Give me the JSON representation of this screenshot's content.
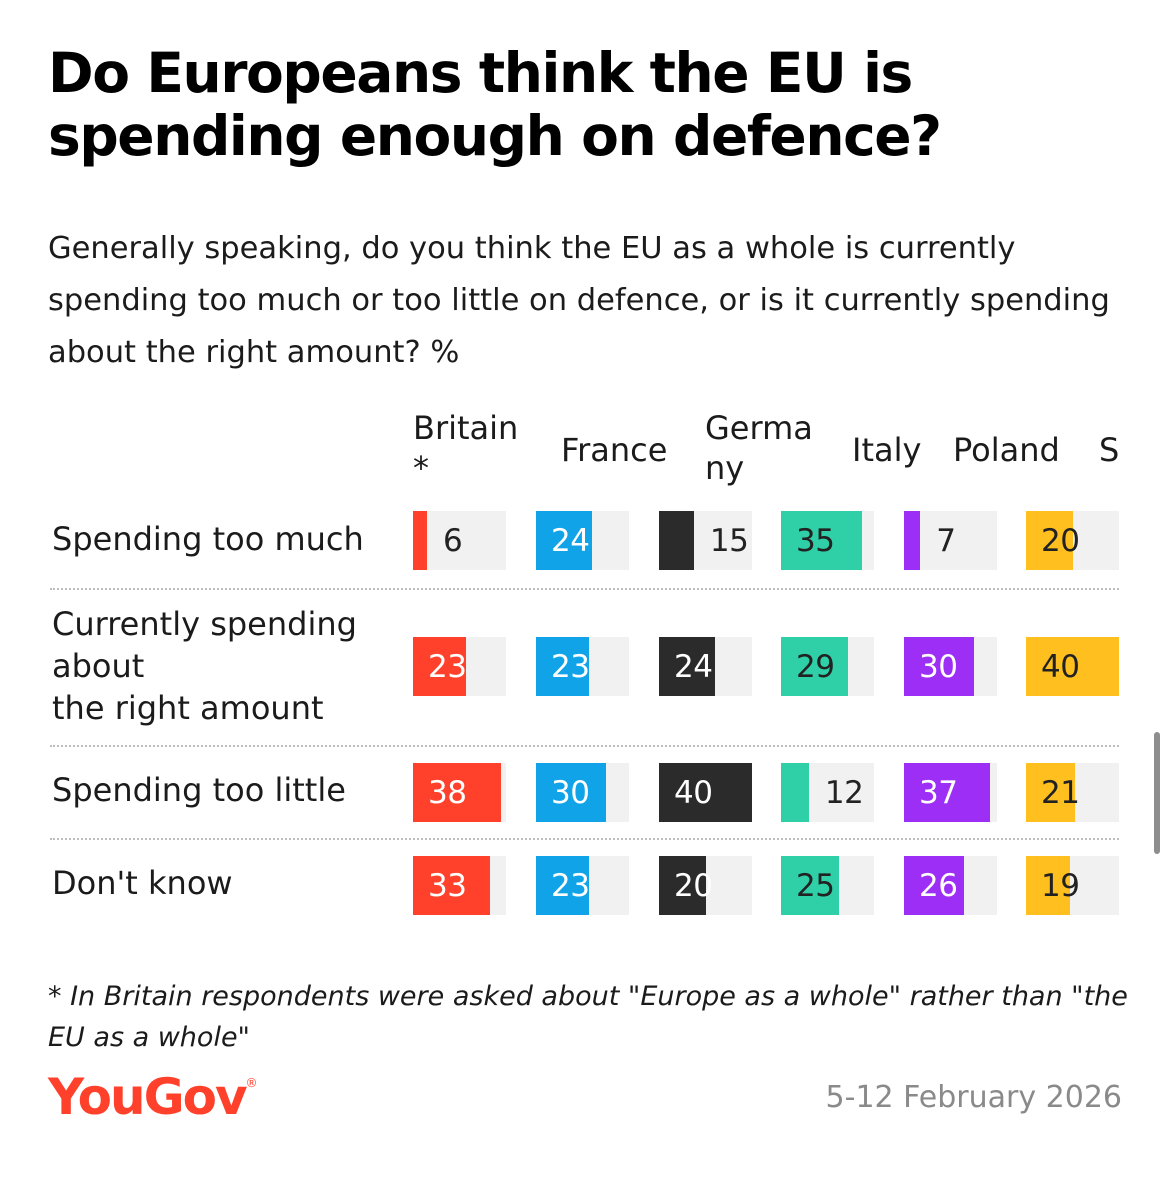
{
  "chart_data": {
    "type": "bar",
    "title": "Do Europeans think the EU is spending enough on defence?",
    "subtitle": "Generally speaking, do you think the EU as a whole is currently spending too much or too little on defence, or is it currently spending about the right amount? %",
    "unit": "%",
    "countries": [
      {
        "name": "Britain *",
        "color": "#ff412c",
        "text_dark": false
      },
      {
        "name": "France",
        "color": "#11a3e8",
        "text_dark": false
      },
      {
        "name": "Germany",
        "color": "#2b2b2b",
        "text_dark": false
      },
      {
        "name": "Italy",
        "color": "#2fd0a8",
        "text_dark": true
      },
      {
        "name": "Poland",
        "color": "#9c2ef5",
        "text_dark": false
      },
      {
        "name": "S",
        "color": "#ffbf1f",
        "text_dark": true
      }
    ],
    "categories": [
      "Spending too much",
      "Currently spending about\nthe right amount",
      "Spending too little",
      "Don't know"
    ],
    "series": [
      {
        "name": "Britain *",
        "values": [
          6,
          23,
          38,
          33
        ]
      },
      {
        "name": "France",
        "values": [
          24,
          23,
          30,
          23
        ]
      },
      {
        "name": "Germany",
        "values": [
          15,
          24,
          40,
          20
        ]
      },
      {
        "name": "Italy",
        "values": [
          35,
          29,
          12,
          25
        ]
      },
      {
        "name": "Poland",
        "values": [
          7,
          30,
          37,
          26
        ]
      },
      {
        "name": "S",
        "values": [
          20,
          40,
          21,
          19
        ]
      }
    ],
    "xlim": [
      0,
      40
    ]
  },
  "footnote": "* In Britain respondents were asked about \"Europe as a whole\" rather than \"the EU as a whole\"",
  "brand": {
    "name": "YouGov",
    "mark": "®"
  },
  "date": "5-12 February 2026"
}
